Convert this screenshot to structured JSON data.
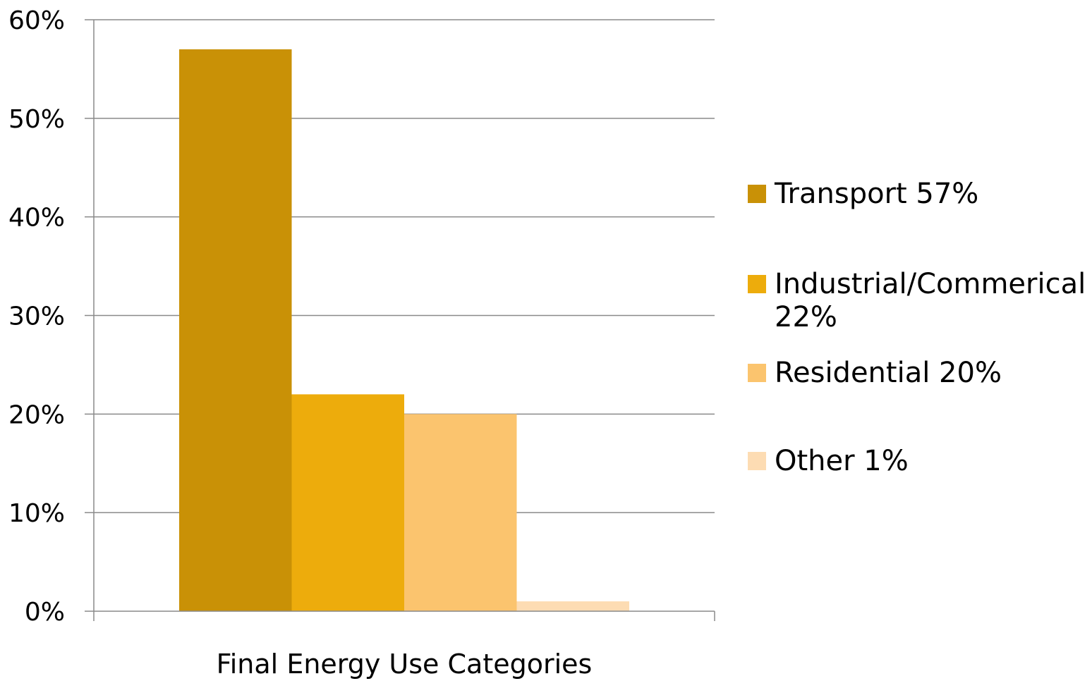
{
  "chart_data": {
    "type": "bar",
    "xlabel": "Final Energy Use Categories",
    "ylabel": "",
    "ylim": [
      0,
      60
    ],
    "y_ticks": [
      "0%",
      "10%",
      "20%",
      "30%",
      "40%",
      "50%",
      "60%"
    ],
    "grid": true,
    "legend_position": "right",
    "series": [
      {
        "name": "Transport 57%",
        "value": 57,
        "color": "#C99106"
      },
      {
        "name": "Industrial/Commerical 22%",
        "value": 22,
        "color": "#EDAC0C"
      },
      {
        "name": "Residential 20%",
        "value": 20,
        "color": "#FBC46E"
      },
      {
        "name": "Other 1%",
        "value": 1,
        "color": "#FDDCB3"
      }
    ]
  }
}
